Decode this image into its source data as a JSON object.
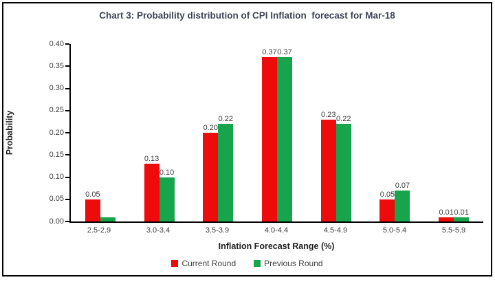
{
  "chart_data": {
    "type": "bar",
    "title": "Chart 3: Probability distribution of CPI Inflation  forecast for Mar-18",
    "xlabel": "Inflation Forecast Range (%)",
    "ylabel": "Probability",
    "categories": [
      "2.5-2.9",
      "3.0-3.4",
      "3.5-3.9",
      "4.0-4.4",
      "4.5-4.9",
      "5.0-5.4",
      "5.5-5.9"
    ],
    "series": [
      {
        "name": "Current Round",
        "color": "#ee0b0b",
        "values": [
          0.05,
          0.13,
          0.2,
          0.37,
          0.23,
          0.05,
          0.01
        ],
        "labels": [
          "0.05",
          "0.13",
          "0.20",
          "0.37",
          "0.23",
          "0.05",
          "0.01"
        ]
      },
      {
        "name": "Previous Round",
        "color": "#16a44c",
        "values": [
          0.01,
          0.1,
          0.22,
          0.37,
          0.22,
          0.07,
          0.01
        ],
        "labels": [
          "",
          "0.10",
          "0.22",
          "0.37",
          "0.22",
          "0.07",
          "0.01"
        ]
      }
    ],
    "ylim": [
      0,
      0.4
    ],
    "yticks": [
      "0.00",
      "0.05",
      "0.10",
      "0.15",
      "0.20",
      "0.25",
      "0.30",
      "0.35",
      "0.40"
    ],
    "grid": false,
    "legend_position": "bottom"
  }
}
